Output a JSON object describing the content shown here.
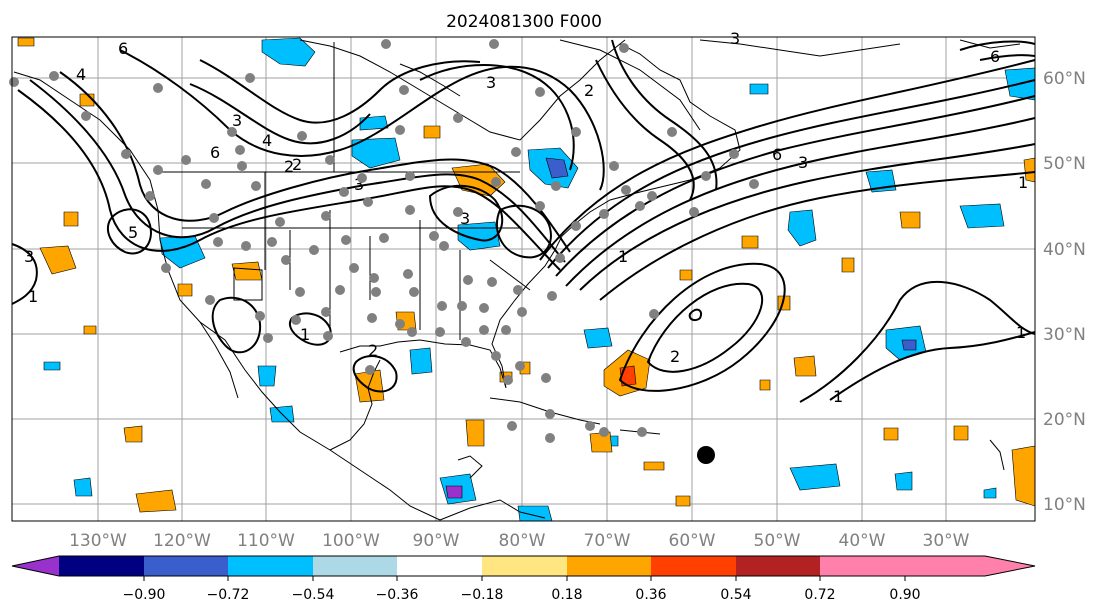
{
  "title": "2024081300 F000",
  "lon_labels": [
    "130°W",
    "120°W",
    "110°W",
    "100°W",
    "90°W",
    "80°W",
    "70°W",
    "60°W",
    "50°W",
    "40°W",
    "30°W"
  ],
  "lat_labels": [
    "60°N",
    "50°N",
    "40°N",
    "30°N",
    "20°N",
    "10°N"
  ],
  "colorbar": {
    "colors": [
      "#9932cc",
      "#000080",
      "#3a5fcd",
      "#00bfff",
      "#add8e6",
      "#ffffff",
      "#ffe680",
      "#ffa500",
      "#ff4000",
      "#b22222",
      "#ff80aa"
    ],
    "ticks": [
      "−0.90",
      "−0.72",
      "−0.54",
      "−0.36",
      "−0.18",
      "0.18",
      "0.36",
      "0.54",
      "0.72",
      "0.90"
    ]
  },
  "contour_labels": [
    "6",
    "4",
    "3",
    "2",
    "6",
    "4",
    "3",
    "2",
    "3",
    "5",
    "3",
    "6",
    "3",
    "1",
    "3",
    "2",
    "1",
    "1",
    "2",
    "1",
    "1",
    "6",
    "3",
    "2",
    "1"
  ]
}
